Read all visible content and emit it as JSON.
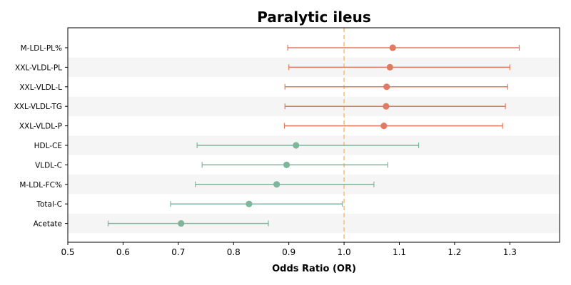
{
  "chart_data": {
    "type": "forest",
    "title": "Paralytic ileus",
    "xlabel": "Odds Ratio (OR)",
    "xlim": [
      0.5,
      1.39
    ],
    "xticks": [
      0.5,
      0.6,
      0.7,
      0.8,
      0.9,
      1.0,
      1.1,
      1.2,
      1.3
    ],
    "xtick_labels": [
      "0.5",
      "0.6",
      "0.7",
      "0.8",
      "0.9",
      "1.0",
      "1.1",
      "1.2",
      "1.3"
    ],
    "reference_line": 1.0,
    "grid": false,
    "rows": [
      {
        "label": "M-LDL-PL%",
        "or": 1.088,
        "lower": 0.898,
        "upper": 1.317,
        "color": "#e07b61"
      },
      {
        "label": "XXL-VLDL-PL",
        "or": 1.083,
        "lower": 0.9,
        "upper": 1.3,
        "color": "#e07b61"
      },
      {
        "label": "XXL-VLDL-L",
        "or": 1.077,
        "lower": 0.893,
        "upper": 1.296,
        "color": "#e07b61"
      },
      {
        "label": "XXL-VLDL-TG",
        "or": 1.076,
        "lower": 0.893,
        "upper": 1.292,
        "color": "#e07b61"
      },
      {
        "label": "XXL-VLDL-P",
        "or": 1.072,
        "lower": 0.892,
        "upper": 1.287,
        "color": "#e07b61"
      },
      {
        "label": "HDL-CE",
        "or": 0.913,
        "lower": 0.734,
        "upper": 1.135,
        "color": "#7fb59a"
      },
      {
        "label": "VLDL-C",
        "or": 0.896,
        "lower": 0.743,
        "upper": 1.079,
        "color": "#7fb59a"
      },
      {
        "label": "M-LDL-FC%",
        "or": 0.878,
        "lower": 0.731,
        "upper": 1.054,
        "color": "#7fb59a"
      },
      {
        "label": "Total-C",
        "or": 0.828,
        "lower": 0.686,
        "upper": 0.997,
        "color": "#7fb59a"
      },
      {
        "label": "Acetate",
        "or": 0.705,
        "lower": 0.573,
        "upper": 0.863,
        "color": "#7fb59a"
      }
    ],
    "colors": {
      "risk": "#e07b61",
      "protective": "#7fb59a",
      "reference_line": "#f2c27f",
      "band": "#f5f5f5"
    }
  }
}
